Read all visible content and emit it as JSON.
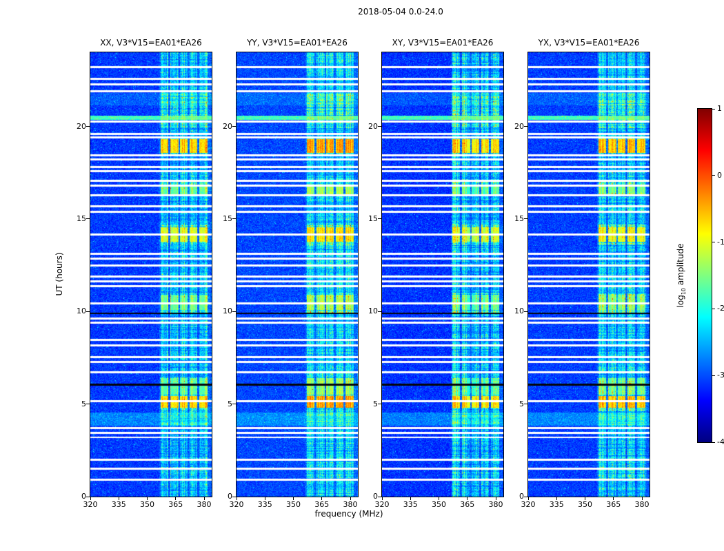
{
  "chart_data": {
    "type": "heatmap",
    "title": "2018-05-04 0.0-24.0",
    "xlabel": "frequency (MHz)",
    "ylabel": "UT (hours)",
    "x_range": [
      320,
      384
    ],
    "y_range": [
      0,
      24
    ],
    "x_ticks": [
      320,
      335,
      350,
      365,
      380
    ],
    "y_ticks": [
      0,
      5,
      10,
      15,
      20
    ],
    "colormap": "jet",
    "panels": [
      {
        "id": "xx",
        "title": "XX, V3*V15=EA01*EA26"
      },
      {
        "id": "yy",
        "title": "YY, V3*V15=EA01*EA26"
      },
      {
        "id": "xy",
        "title": "XY, V3*V15=EA01*EA26"
      },
      {
        "id": "yx",
        "title": "YX, V3*V15=EA01*EA26"
      }
    ],
    "colorbar": {
      "label_prefix": "log",
      "label_sub": "10",
      "label_suffix": " amplitude",
      "min": -4,
      "max": 1,
      "ticks": [
        {
          "value": 1,
          "label": "1"
        },
        {
          "value": 0,
          "label": "0"
        },
        {
          "value": -1,
          "label": "-1"
        },
        {
          "value": -2,
          "label": "-2"
        },
        {
          "value": -3,
          "label": "-3"
        },
        {
          "value": -4,
          "label": "-4"
        }
      ]
    },
    "background_level": -3.1,
    "panel_level_offset": [
      0,
      0.22,
      -0.12,
      0.05
    ],
    "rfi_band": {
      "freq_start": 356.5,
      "subbands": [
        [
          357.2,
          361.2
        ],
        [
          362.2,
          366.4
        ],
        [
          367.4,
          371.4
        ],
        [
          372.4,
          376.4
        ],
        [
          377.4,
          381.8
        ]
      ]
    },
    "band_time_gain": [
      {
        "ut": [
          19.9,
          21.75
        ],
        "gain": 1.35
      },
      {
        "ut": [
          18.5,
          19.35
        ],
        "gain": 1.6
      },
      {
        "ut": [
          16.3,
          17.1
        ],
        "gain": 1.5
      },
      {
        "ut": [
          13.6,
          14.7
        ],
        "gain": 1.7
      },
      {
        "ut": [
          9.95,
          11.0
        ],
        "gain": 1.6
      },
      {
        "ut": [
          4.6,
          6.45
        ],
        "gain": 1.55
      },
      {
        "ut": [
          0.9,
          1.6
        ],
        "gain": 1.2
      }
    ],
    "bright_blocks": [
      {
        "ut": [
          18.55,
          19.3
        ],
        "level": -0.62
      },
      {
        "ut": [
          16.35,
          16.75
        ],
        "level": -1.55
      },
      {
        "ut": [
          13.75,
          14.55
        ],
        "level": -0.95
      },
      {
        "ut": [
          10.1,
          10.9
        ],
        "level": -1.5
      },
      {
        "ut": [
          5.5,
          6.4
        ],
        "level": -1.6
      },
      {
        "ut": [
          4.8,
          5.45
        ],
        "level": -0.6
      }
    ],
    "green_row": {
      "ut": 20.47,
      "halfwidth": 0.1,
      "level": -1.8
    },
    "elevated_rows": [
      {
        "ut": [
          21.15,
          21.8
        ],
        "add": 0.18
      },
      {
        "ut": [
          3.85,
          4.55
        ],
        "add": 0.38
      }
    ],
    "blank_rows_ut": [
      23.2,
      22.55,
      22.27,
      21.9,
      20.27,
      19.6,
      19.42,
      18.42,
      18.2,
      17.82,
      17.58,
      17.05,
      16.8,
      16.28,
      15.7,
      15.4,
      14.15,
      13.1,
      12.85,
      12.5,
      11.9,
      11.62,
      11.35,
      10.45,
      9.62,
      9.38,
      8.45,
      8.18,
      7.55,
      7.28,
      6.7,
      5.15,
      3.7,
      3.45,
      3.2,
      1.98,
      1.5,
      0.92
    ],
    "dark_rows_ut": [
      9.9,
      6.05
    ]
  }
}
